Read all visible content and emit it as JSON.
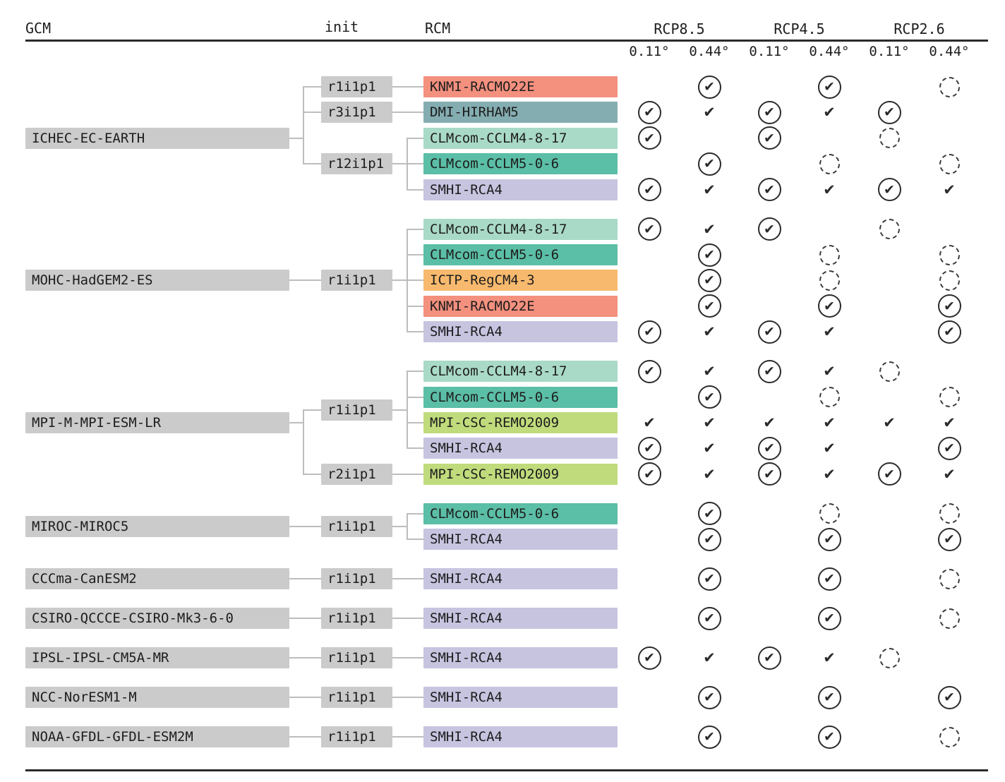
{
  "header": {
    "gcm_label": "GCM",
    "init_label": "init",
    "rcm_label": "RCM",
    "scenarios": [
      "RCP8.5",
      "RCP4.5",
      "RCP2.6"
    ],
    "resolutions": [
      "0.11°",
      "0.44°"
    ]
  },
  "mark_types": {
    "cc": "circled-check",
    "ck": "plain-check",
    "da": "dashed-circle"
  },
  "colors": {
    "gcm_init_box": "#CBCBCB",
    "tree_line": "#BDBDBD",
    "mark": "#2B2B2B",
    "rule": "#2B2B2B",
    "rcm": {
      "KNMI-RACMO22E": "#F3907E",
      "DMI-HIRHAM5": "#84ADB1",
      "CLMcom-CCLM4-8-17": "#A9DAC7",
      "CLMcom-CCLM5-0-6": "#5BBEA6",
      "SMHI-RCA4": "#C7C4E0",
      "ICTP-RegCM4-3": "#F7B96E",
      "MPI-CSC-REMO2009": "#C0DB7C"
    }
  },
  "groups": [
    {
      "gcm": "ICHEC-EC-EARTH",
      "inits": [
        {
          "name": "r1i1p1",
          "rcms": [
            {
              "name": "KNMI-RACMO22E",
              "marks": [
                "",
                "cc",
                "",
                "cc",
                "",
                "da"
              ]
            }
          ]
        },
        {
          "name": "r3i1p1",
          "rcms": [
            {
              "name": "DMI-HIRHAM5",
              "marks": [
                "cc",
                "ck",
                "cc",
                "ck",
                "cc",
                ""
              ]
            }
          ]
        },
        {
          "name": "r12i1p1",
          "rcms": [
            {
              "name": "CLMcom-CCLM4-8-17",
              "marks": [
                "cc",
                "",
                "cc",
                "",
                "da",
                ""
              ]
            },
            {
              "name": "CLMcom-CCLM5-0-6",
              "marks": [
                "",
                "cc",
                "",
                "da",
                "",
                "da"
              ]
            },
            {
              "name": "SMHI-RCA4",
              "marks": [
                "cc",
                "ck",
                "cc",
                "ck",
                "cc",
                "ck"
              ]
            }
          ]
        }
      ]
    },
    {
      "gcm": "MOHC-HadGEM2-ES",
      "inits": [
        {
          "name": "r1i1p1",
          "rcms": [
            {
              "name": "CLMcom-CCLM4-8-17",
              "marks": [
                "cc",
                "ck",
                "cc",
                "",
                "da",
                ""
              ]
            },
            {
              "name": "CLMcom-CCLM5-0-6",
              "marks": [
                "",
                "cc",
                "",
                "da",
                "",
                "da"
              ]
            },
            {
              "name": "ICTP-RegCM4-3",
              "marks": [
                "",
                "cc",
                "",
                "da",
                "",
                "da"
              ]
            },
            {
              "name": "KNMI-RACMO22E",
              "marks": [
                "",
                "cc",
                "",
                "cc",
                "",
                "cc"
              ]
            },
            {
              "name": "SMHI-RCA4",
              "marks": [
                "cc",
                "ck",
                "cc",
                "ck",
                "",
                "cc"
              ]
            }
          ]
        }
      ]
    },
    {
      "gcm": "MPI-M-MPI-ESM-LR",
      "inits": [
        {
          "name": "r1i1p1",
          "rcms": [
            {
              "name": "CLMcom-CCLM4-8-17",
              "marks": [
                "cc",
                "ck",
                "cc",
                "ck",
                "da",
                ""
              ]
            },
            {
              "name": "CLMcom-CCLM5-0-6",
              "marks": [
                "",
                "cc",
                "",
                "da",
                "",
                "da"
              ]
            },
            {
              "name": "MPI-CSC-REMO2009",
              "marks": [
                "ck",
                "ck",
                "ck",
                "ck",
                "ck",
                "ck"
              ]
            },
            {
              "name": "SMHI-RCA4",
              "marks": [
                "cc",
                "ck",
                "cc",
                "ck",
                "",
                "cc"
              ]
            }
          ]
        },
        {
          "name": "r2i1p1",
          "rcms": [
            {
              "name": "MPI-CSC-REMO2009",
              "marks": [
                "cc",
                "ck",
                "cc",
                "ck",
                "cc",
                "ck"
              ]
            }
          ]
        }
      ]
    },
    {
      "gcm": "MIROC-MIROC5",
      "inits": [
        {
          "name": "r1i1p1",
          "rcms": [
            {
              "name": "CLMcom-CCLM5-0-6",
              "marks": [
                "",
                "cc",
                "",
                "da",
                "",
                "da"
              ]
            },
            {
              "name": "SMHI-RCA4",
              "marks": [
                "",
                "cc",
                "",
                "cc",
                "",
                "cc"
              ]
            }
          ]
        }
      ]
    },
    {
      "gcm": "CCCma-CanESM2",
      "inits": [
        {
          "name": "r1i1p1",
          "rcms": [
            {
              "name": "SMHI-RCA4",
              "marks": [
                "",
                "cc",
                "",
                "cc",
                "",
                "da"
              ]
            }
          ]
        }
      ]
    },
    {
      "gcm": "CSIRO-QCCCE-CSIRO-Mk3-6-0",
      "inits": [
        {
          "name": "r1i1p1",
          "rcms": [
            {
              "name": "SMHI-RCA4",
              "marks": [
                "",
                "cc",
                "",
                "cc",
                "",
                "da"
              ]
            }
          ]
        }
      ]
    },
    {
      "gcm": "IPSL-IPSL-CM5A-MR",
      "inits": [
        {
          "name": "r1i1p1",
          "rcms": [
            {
              "name": "SMHI-RCA4",
              "marks": [
                "cc",
                "ck",
                "cc",
                "ck",
                "da",
                ""
              ]
            }
          ]
        }
      ]
    },
    {
      "gcm": "NCC-NorESM1-M",
      "inits": [
        {
          "name": "r1i1p1",
          "rcms": [
            {
              "name": "SMHI-RCA4",
              "marks": [
                "",
                "cc",
                "",
                "cc",
                "",
                "cc"
              ]
            }
          ]
        }
      ]
    },
    {
      "gcm": "NOAA-GFDL-GFDL-ESM2M",
      "inits": [
        {
          "name": "r1i1p1",
          "rcms": [
            {
              "name": "SMHI-RCA4",
              "marks": [
                "",
                "cc",
                "",
                "cc",
                "",
                "da"
              ]
            }
          ]
        }
      ]
    }
  ]
}
